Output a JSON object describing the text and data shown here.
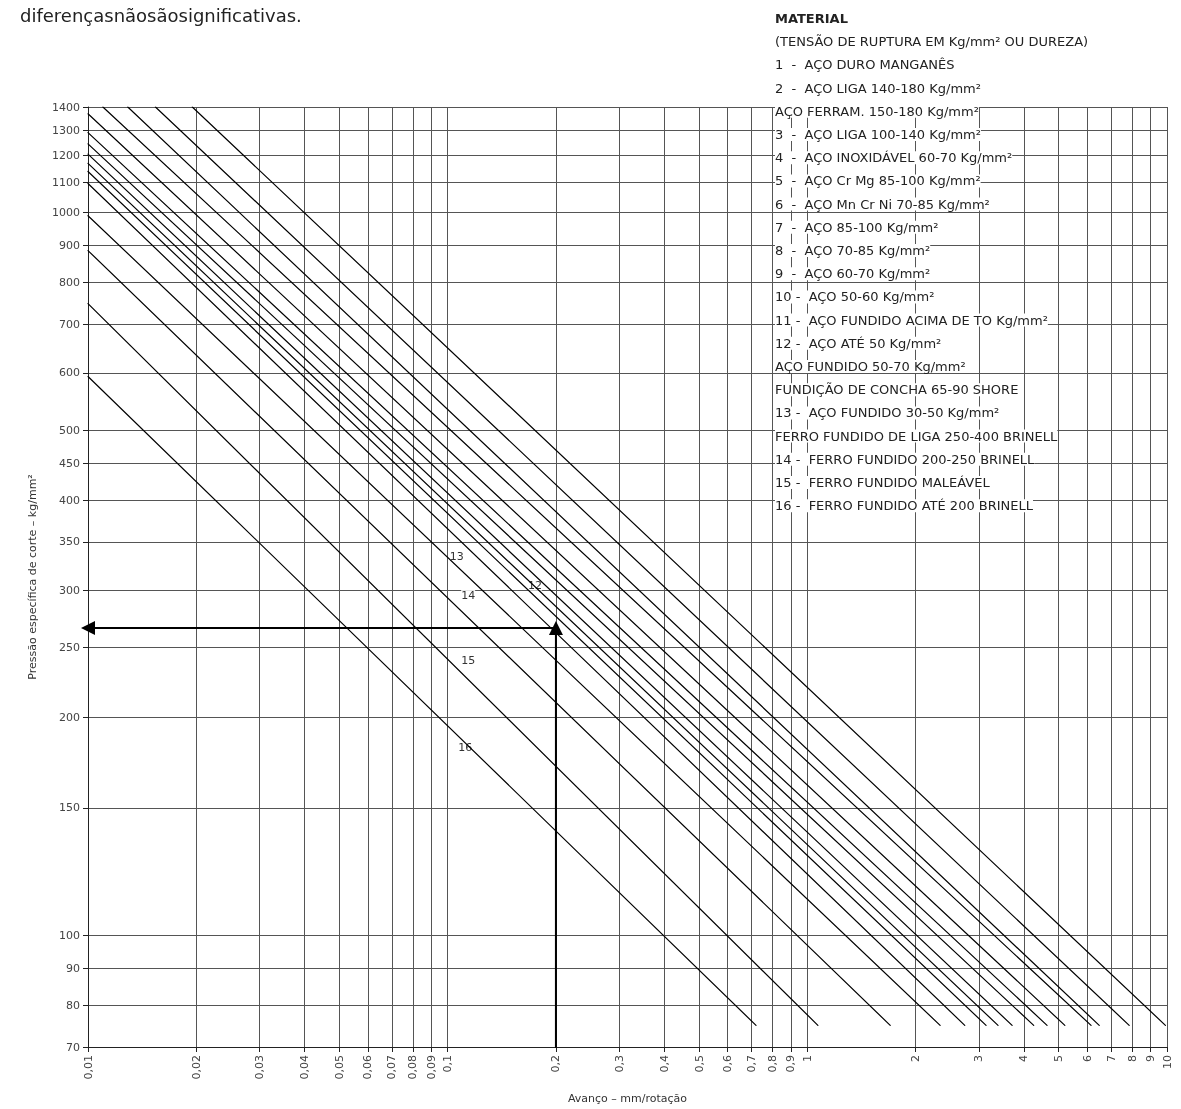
{
  "chart_data": {
    "type": "line",
    "xlabel": "Avanço – mm/rotação",
    "ylabel": "Pressão específica de corte – kg/mm²",
    "log": "xy",
    "xlim": [
      0.01,
      10
    ],
    "ylim": [
      70,
      1400
    ],
    "xticks": [
      {
        "value": 0.01,
        "label": "0,01"
      },
      {
        "value": 0.02,
        "label": "0,02"
      },
      {
        "value": 0.03,
        "label": "0,03"
      },
      {
        "value": 0.04,
        "label": "0,04"
      },
      {
        "value": 0.05,
        "label": "0,05"
      },
      {
        "value": 0.06,
        "label": "0,06"
      },
      {
        "value": 0.07,
        "label": "0,07"
      },
      {
        "value": 0.08,
        "label": "0,08"
      },
      {
        "value": 0.09,
        "label": "0,09"
      },
      {
        "value": 0.1,
        "label": "0,1"
      },
      {
        "value": 0.2,
        "label": "0,2"
      },
      {
        "value": 0.3,
        "label": "0,3"
      },
      {
        "value": 0.4,
        "label": "0,4"
      },
      {
        "value": 0.5,
        "label": "0,5"
      },
      {
        "value": 0.6,
        "label": "0,6"
      },
      {
        "value": 0.7,
        "label": "0,7"
      },
      {
        "value": 0.8,
        "label": "0,8"
      },
      {
        "value": 0.9,
        "label": "0,9"
      },
      1,
      2,
      3,
      4,
      5,
      6,
      7,
      8,
      9,
      10
    ],
    "yticks": [
      70,
      80,
      90,
      100,
      150,
      200,
      250,
      300,
      350,
      400,
      450,
      500,
      600,
      700,
      800,
      900,
      1000,
      1100,
      1200,
      1300,
      1400
    ],
    "grid": true,
    "marker": "none",
    "series": [
      {
        "color": "#000000",
        "x": [
          0.0195,
          9.9
        ],
        "values": [
          1400,
          75
        ]
      },
      {
        "color": "#000000",
        "x": [
          0.0154,
          7.85
        ],
        "values": [
          1400,
          75
        ]
      },
      {
        "color": "#000000",
        "x": [
          0.0129,
          6.48
        ],
        "values": [
          1400,
          75
        ]
      },
      {
        "color": "#000000",
        "x": [
          0.011,
          6.15
        ],
        "values": [
          1400,
          75
        ]
      },
      {
        "color": "#000000",
        "x": [
          0.01,
          5.2
        ],
        "values": [
          1370,
          75
        ]
      },
      {
        "color": "#000000",
        "x": [
          0.01,
          4.64
        ],
        "values": [
          1290,
          75
        ]
      },
      {
        "color": "#000000",
        "x": [
          0.01,
          4.26
        ],
        "values": [
          1245,
          75
        ]
      },
      {
        "color": "#000000",
        "x": [
          0.01,
          3.71
        ],
        "values": [
          1205,
          75
        ]
      },
      {
        "color": "#000000",
        "x": [
          0.01,
          3.39
        ],
        "values": [
          1170,
          75
        ]
      },
      {
        "color": "#000000",
        "x": [
          0.01,
          3.14
        ],
        "values": [
          1140,
          75
        ]
      },
      {
        "color": "#000000",
        "x": [
          0.01,
          2.74
        ],
        "values": [
          1097,
          75
        ]
      },
      {
        "color": "#000000",
        "x": [
          0.01,
          2.34
        ],
        "values": [
          990,
          75
        ]
      },
      {
        "color": "#000000",
        "x": [
          0.01,
          1.7
        ],
        "values": [
          886,
          75
        ]
      },
      {
        "color": "#000000",
        "x": [
          0.01,
          1.07
        ],
        "values": [
          748,
          75
        ]
      },
      {
        "color": "#000000",
        "x": [
          0.01,
          0.72
        ],
        "values": [
          593,
          75
        ]
      },
      {
        "color": "#000000",
        "x": [
          0.2,
          0.2
        ],
        "values": [
          70,
          266
        ],
        "marker": "triangle"
      },
      {
        "color": "#000000",
        "x": [
          0.2,
          0.01
        ],
        "values": [
          266,
          266
        ],
        "marker": "triangle"
      }
    ],
    "annotations": [
      "diferençasnãosãosignificativas.",
      "MATERIAL",
      "(TENSÃO DE RUPTURA EM Kg/mm² OU DUREZA)",
      "1  -  AÇO DURO MANGANÊS",
      "2  -  AÇO LIGA 140-180 Kg/mm²",
      "AÇO FERRAM. 150-180 Kg/mm²",
      "3  -  AÇO LIGA 100-140 Kg/mm²",
      "4  -  AÇO INOXIDÁVEL 60-70 Kg/mm²",
      "5  -  AÇO Cr Mg 85-100 Kg/mm²",
      "6  -  AÇO Mn Cr Ni 70-85 Kg/mm²",
      "7  -  AÇO 85-100 Kg/mm²",
      "8  -  AÇO 70-85 Kg/mm²",
      "9  -  AÇO 60-70 Kg/mm²",
      "10 -  AÇO 50-60 Kg/mm²",
      "11 -  AÇO FUNDIDO ACIMA DE TO Kg/mm²",
      "12 -  AÇO ATÉ 50 Kg/mm²",
      "AÇO FUNDIDO 50-70 Kg/mm²",
      "FUNDIÇÃO DE CONCHA 65-90 SHORE",
      "13 -  AÇO FUNDIDO 30-50 Kg/mm²",
      "FERRO FUNDIDO DE LIGA 250-400 BRINELL",
      "14 -  FERRO FUNDIDO 200-250 BRINELL",
      "15 -  FERRO FUNDIDO MALEÁVEL",
      "16 -  FERRO FUNDIDO ATÉ 200 BRINELL",
      {
        "text": "13",
        "x": 0.106,
        "y": 334
      },
      {
        "text": "14",
        "x": 0.114,
        "y": 295
      },
      {
        "text": "12",
        "x": 0.175,
        "y": 305
      },
      {
        "text": "15",
        "x": 0.114,
        "y": 240
      },
      {
        "text": "16",
        "x": 0.112,
        "y": 182
      }
    ]
  }
}
